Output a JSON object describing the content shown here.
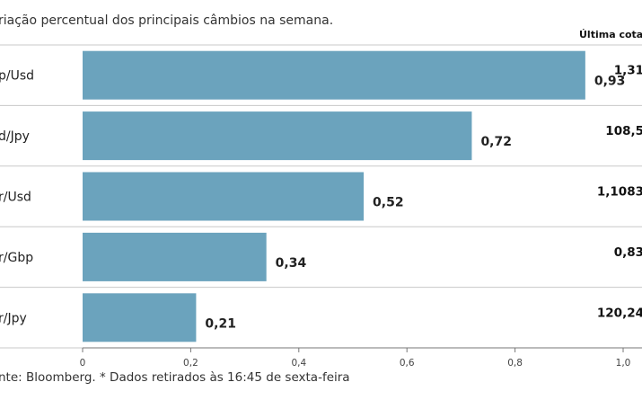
{
  "subtitle": "riação percentual dos principais câmbios na semana.",
  "last_quote_header": "Última cotaç",
  "source_note": "nte: Bloomberg.  * Dados retirados às 16:45 de sexta-feira",
  "colors": {
    "bar": "#6ba3bd",
    "grid": "#c8c8c8",
    "axis": "#777777"
  },
  "chart_data": {
    "type": "bar",
    "orientation": "horizontal",
    "categories": [
      "p/Usd",
      "d/Jpy",
      "r/Usd",
      "r/Gbp",
      "r/Jpy"
    ],
    "values": [
      0.93,
      0.72,
      0.52,
      0.34,
      0.21
    ],
    "value_labels": [
      "0,93",
      "0,72",
      "0,52",
      "0,34",
      "0,21"
    ],
    "last_quote": [
      "1,31",
      "108,5",
      "1,1083",
      "0,83",
      "120,24"
    ],
    "xlim": [
      0,
      1.0
    ],
    "x_ticks": [
      0,
      0.2,
      0.4,
      0.6,
      0.8,
      1.0
    ],
    "x_tick_labels": [
      "0",
      "0,2",
      "0,4",
      "0,6",
      "0,8",
      "1,0"
    ],
    "grid": false
  }
}
